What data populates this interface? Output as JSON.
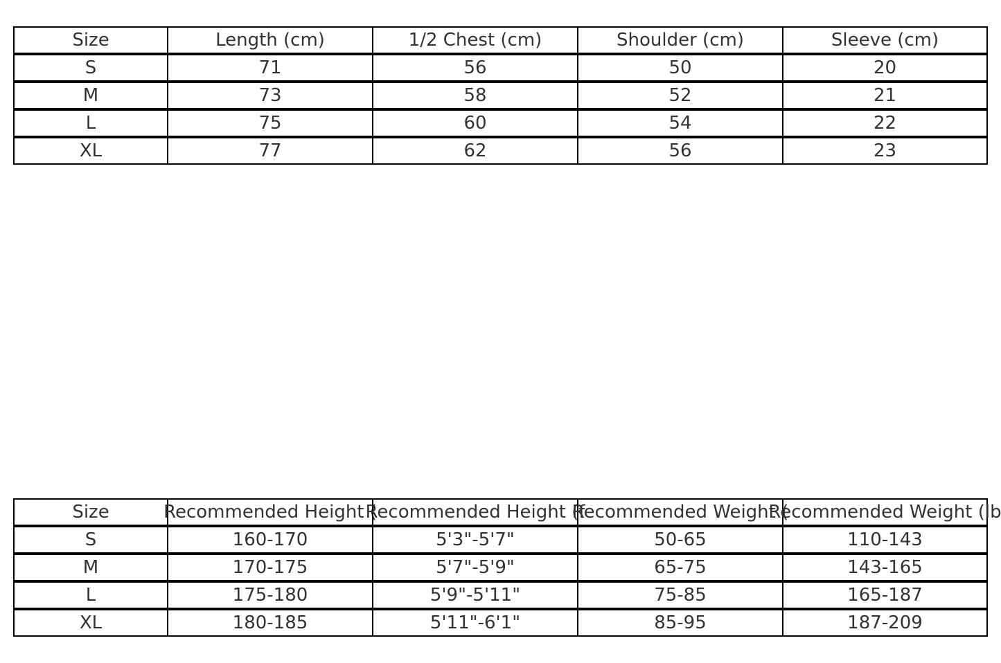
{
  "measurements_table": {
    "headers": [
      "Size",
      "Length (cm)",
      "1/2 Chest (cm)",
      "Shoulder (cm)",
      "Sleeve (cm)"
    ],
    "rows": [
      [
        "S",
        "71",
        "56",
        "50",
        "20"
      ],
      [
        "M",
        "73",
        "58",
        "52",
        "21"
      ],
      [
        "L",
        "75",
        "60",
        "54",
        "22"
      ],
      [
        "XL",
        "77",
        "62",
        "56",
        "23"
      ]
    ]
  },
  "recommendation_table": {
    "headers": [
      "Size",
      "Recommended Height (",
      "Recommended Height (f",
      "Recommended Weight (",
      "Recommended Weight (lb"
    ],
    "rows": [
      [
        "S",
        "160-170",
        "5'3\"-5'7\"",
        "50-65",
        "110-143"
      ],
      [
        "M",
        "170-175",
        "5'7\"-5'9\"",
        "65-75",
        "143-165"
      ],
      [
        "L",
        "175-180",
        "5'9\"-5'11\"",
        "75-85",
        "165-187"
      ],
      [
        "XL",
        "180-185",
        "5'11\"-6'1\"",
        "85-95",
        "187-209"
      ]
    ]
  }
}
